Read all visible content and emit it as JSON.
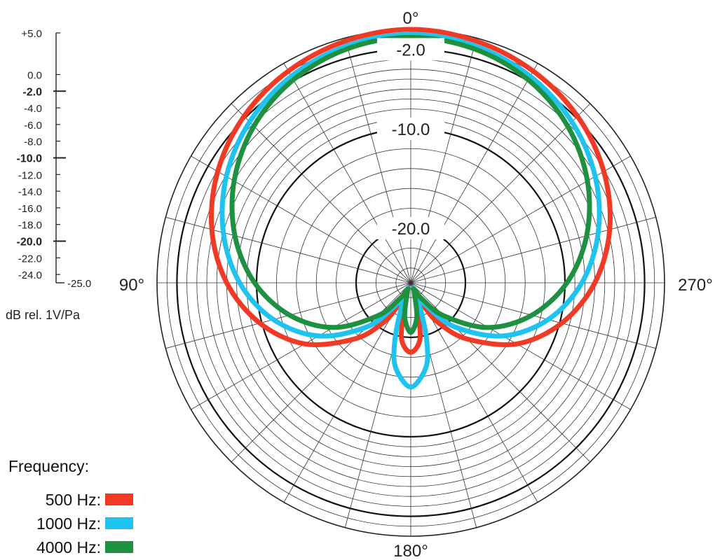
{
  "chart_data": {
    "type": "polar-line",
    "angle_labels": [
      {
        "angle": 0,
        "text": "0°"
      },
      {
        "angle": 90,
        "text": "90°"
      },
      {
        "angle": 180,
        "text": "180°"
      },
      {
        "angle": 270,
        "text": "270°"
      }
    ],
    "radial_range_db": [
      -25,
      0
    ],
    "grid": true,
    "ring_labels": [
      {
        "value": -2,
        "text": "-2.0"
      },
      {
        "value": -10,
        "text": "-10.0"
      },
      {
        "value": -20,
        "text": "-20.0"
      }
    ],
    "scale": {
      "tick_labels": [
        {
          "value": 5,
          "text": "+5.0",
          "major": false
        },
        {
          "value": 0,
          "text": "0.0",
          "major": false
        },
        {
          "value": -2,
          "text": "-2.0",
          "major": true
        },
        {
          "value": -4,
          "text": "-4.0",
          "major": false
        },
        {
          "value": -6,
          "text": "-6.0",
          "major": false
        },
        {
          "value": -8,
          "text": "-8.0",
          "major": false
        },
        {
          "value": -10,
          "text": "-10.0",
          "major": true
        },
        {
          "value": -12,
          "text": "-12.0",
          "major": false
        },
        {
          "value": -14,
          "text": "-14.0",
          "major": false
        },
        {
          "value": -16,
          "text": "-16.0",
          "major": false
        },
        {
          "value": -18,
          "text": "-18.0",
          "major": false
        },
        {
          "value": -20,
          "text": "-20.0",
          "major": true
        },
        {
          "value": -22,
          "text": "-22.0",
          "major": false
        },
        {
          "value": -24,
          "text": "-24.0",
          "major": false
        },
        {
          "value": -25,
          "text": "-25.0",
          "major": false
        }
      ],
      "unit": "dB rel. 1V/Pa"
    },
    "legend": {
      "title": "Frequency:",
      "position": "bottom-left"
    },
    "series": [
      {
        "name": "500 Hz:",
        "color": "#f03a25",
        "angles": [
          0,
          15,
          30,
          45,
          60,
          75,
          90,
          105,
          120,
          135,
          145,
          150,
          155,
          160,
          170,
          180,
          190,
          200,
          205,
          210,
          215,
          225,
          240,
          255,
          270,
          285,
          300,
          315,
          330,
          345,
          360
        ],
        "values": [
          0,
          -0.3,
          -0.9,
          -1.8,
          -3.1,
          -4.8,
          -7,
          -9.8,
          -13.2,
          -17.5,
          -20.5,
          -22.5,
          -24.5,
          -24.3,
          -20,
          -18.5,
          -20,
          -24.3,
          -24.5,
          -22.5,
          -20.5,
          -17.5,
          -13.2,
          -9.8,
          -7,
          -4.8,
          -3.1,
          -1.8,
          -0.9,
          -0.3,
          0
        ]
      },
      {
        "name": "1000 Hz:",
        "color": "#1ec3ef",
        "angles": [
          0,
          15,
          30,
          45,
          60,
          75,
          90,
          105,
          120,
          135,
          145,
          150,
          155,
          160,
          165,
          170,
          180,
          190,
          195,
          200,
          205,
          210,
          215,
          225,
          240,
          255,
          270,
          285,
          300,
          315,
          330,
          345,
          360
        ],
        "values": [
          -0.5,
          -0.8,
          -1.5,
          -2.6,
          -4.1,
          -6,
          -8.3,
          -11.2,
          -14.8,
          -19.2,
          -22.5,
          -24.2,
          -24.8,
          -22.5,
          -19.2,
          -16.8,
          -15,
          -16.8,
          -19.2,
          -22.5,
          -24.8,
          -24.2,
          -22.5,
          -19.2,
          -14.8,
          -11.2,
          -8.3,
          -6,
          -4.1,
          -2.6,
          -1.5,
          -0.8,
          -0.5
        ]
      },
      {
        "name": "4000 Hz:",
        "color": "#1e9140",
        "angles": [
          0,
          15,
          30,
          45,
          60,
          75,
          90,
          105,
          120,
          135,
          145,
          150,
          155,
          160,
          170,
          180,
          190,
          200,
          205,
          210,
          215,
          225,
          240,
          255,
          270,
          285,
          300,
          315,
          330,
          345,
          360
        ],
        "values": [
          -0.8,
          -1.1,
          -1.9,
          -3.2,
          -5,
          -7.2,
          -9.8,
          -12.9,
          -16.5,
          -20.8,
          -23.5,
          -24.5,
          -24.8,
          -24.5,
          -22,
          -20.5,
          -22,
          -24.5,
          -24.8,
          -24.5,
          -23.5,
          -20.8,
          -16.5,
          -12.9,
          -9.8,
          -7.2,
          -5,
          -3.2,
          -1.9,
          -1.1,
          -0.8
        ]
      }
    ]
  }
}
